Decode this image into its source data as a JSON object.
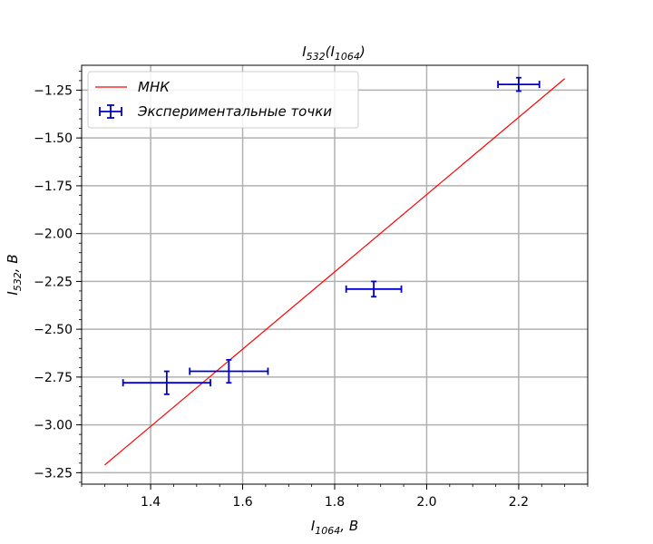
{
  "chart_data": {
    "type": "scatter",
    "title": {
      "base": "I",
      "sub": "532",
      "mid": "(I",
      "sub2": "1064",
      "end": ")"
    },
    "xlabel": {
      "base": "I",
      "sub": "1064",
      "unit": ",  B"
    },
    "ylabel": {
      "base": "I",
      "sub": "532",
      "unit": ",  B"
    },
    "xlim": [
      1.25,
      2.35
    ],
    "ylim": [
      -3.31,
      -1.12
    ],
    "x_ticks": [
      1.4,
      1.6,
      1.8,
      2.0,
      2.2
    ],
    "x_tick_labels": [
      "1.4",
      "1.6",
      "1.8",
      "2.0",
      "2.2"
    ],
    "y_ticks": [
      -3.25,
      -3.0,
      -2.75,
      -2.5,
      -2.25,
      -2.0,
      -1.75,
      -1.5,
      -1.25
    ],
    "y_tick_labels": [
      "−3.25",
      "−3.00",
      "−2.75",
      "−2.50",
      "−2.25",
      "−2.00",
      "−1.75",
      "−1.50",
      "−1.25"
    ],
    "grid": true,
    "legend_position": "top-left",
    "series": [
      {
        "name": "МНК",
        "kind": "line",
        "color": "#ff0000",
        "x": [
          1.3,
          2.3
        ],
        "y": [
          -3.21,
          -1.19
        ]
      },
      {
        "name": "Экспериментальные точки",
        "kind": "errorbar",
        "color": "#0000cc",
        "points": [
          {
            "x": 1.435,
            "y": -2.78,
            "xerr": 0.095,
            "yerr": 0.06
          },
          {
            "x": 1.57,
            "y": -2.72,
            "xerr": 0.085,
            "yerr": 0.06
          },
          {
            "x": 1.885,
            "y": -2.29,
            "xerr": 0.06,
            "yerr": 0.04
          },
          {
            "x": 2.2,
            "y": -1.22,
            "xerr": 0.045,
            "yerr": 0.035
          }
        ]
      }
    ]
  }
}
